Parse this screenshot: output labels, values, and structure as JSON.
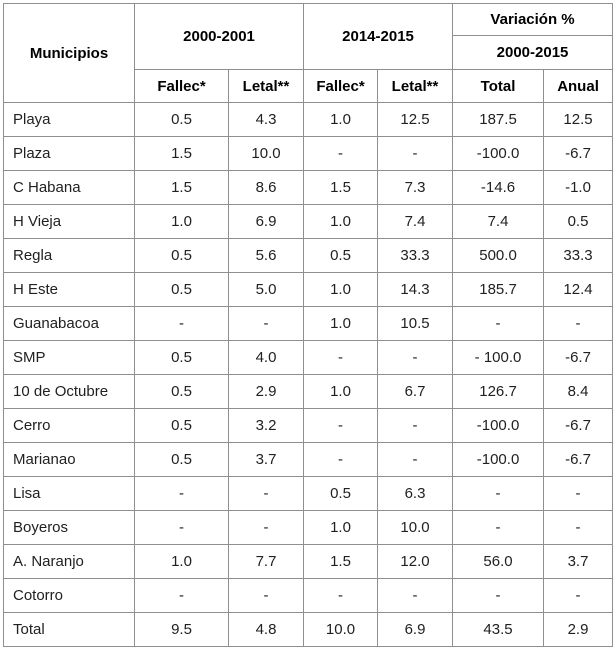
{
  "table": {
    "header": {
      "municipios": "Municipios",
      "period_1": "2000-2001",
      "period_2": "2014-2015",
      "variacion": "Variación %",
      "variacion_period": "2000-2015",
      "sub": [
        "Fallec*",
        "Letal**",
        "Fallec*",
        "Letal**",
        "Total",
        "Anual"
      ]
    },
    "rows": [
      {
        "name": "Playa",
        "values": [
          "0.5",
          "4.3",
          "1.0",
          "12.5",
          "187.5",
          "12.5"
        ]
      },
      {
        "name": "Plaza",
        "values": [
          "1.5",
          "10.0",
          "-",
          "-",
          "-100.0",
          "-6.7"
        ]
      },
      {
        "name": "C Habana",
        "values": [
          "1.5",
          "8.6",
          "1.5",
          "7.3",
          "-14.6",
          "-1.0"
        ]
      },
      {
        "name": "H Vieja",
        "values": [
          "1.0",
          "6.9",
          "1.0",
          "7.4",
          "7.4",
          "0.5"
        ]
      },
      {
        "name": "Regla",
        "values": [
          "0.5",
          "5.6",
          "0.5",
          "33.3",
          "500.0",
          "33.3"
        ]
      },
      {
        "name": "H Este",
        "values": [
          "0.5",
          "5.0",
          "1.0",
          "14.3",
          "185.7",
          "12.4"
        ]
      },
      {
        "name": "Guanabacoa",
        "values": [
          "-",
          "-",
          "1.0",
          "10.5",
          "-",
          "-"
        ]
      },
      {
        "name": "SMP",
        "values": [
          "0.5",
          "4.0",
          "-",
          "-",
          "- 100.0",
          "-6.7"
        ]
      },
      {
        "name": "10 de Octubre",
        "values": [
          "0.5",
          "2.9",
          "1.0",
          "6.7",
          "126.7",
          "8.4"
        ]
      },
      {
        "name": "Cerro",
        "values": [
          "0.5",
          "3.2",
          "-",
          "-",
          "-100.0",
          "-6.7"
        ]
      },
      {
        "name": "Marianao",
        "values": [
          "0.5",
          "3.7",
          "-",
          "-",
          "-100.0",
          "-6.7"
        ]
      },
      {
        "name": "Lisa",
        "values": [
          "-",
          "-",
          "0.5",
          "6.3",
          "-",
          "-"
        ]
      },
      {
        "name": "Boyeros",
        "values": [
          "-",
          "-",
          "1.0",
          "10.0",
          "-",
          "-"
        ]
      },
      {
        "name": "A. Naranjo",
        "values": [
          "1.0",
          "7.7",
          "1.5",
          "12.0",
          "56.0",
          "3.7"
        ]
      },
      {
        "name": "Cotorro",
        "values": [
          "-",
          "-",
          "-",
          "-",
          "-",
          "-"
        ]
      },
      {
        "name": "Total",
        "values": [
          "9.5",
          "4.8",
          "10.0",
          "6.9",
          "43.5",
          "2.9"
        ]
      }
    ]
  },
  "colors": {
    "border": "#8f8f8f",
    "header_text": "#000000",
    "body_text": "#212121",
    "background": "#ffffff"
  }
}
